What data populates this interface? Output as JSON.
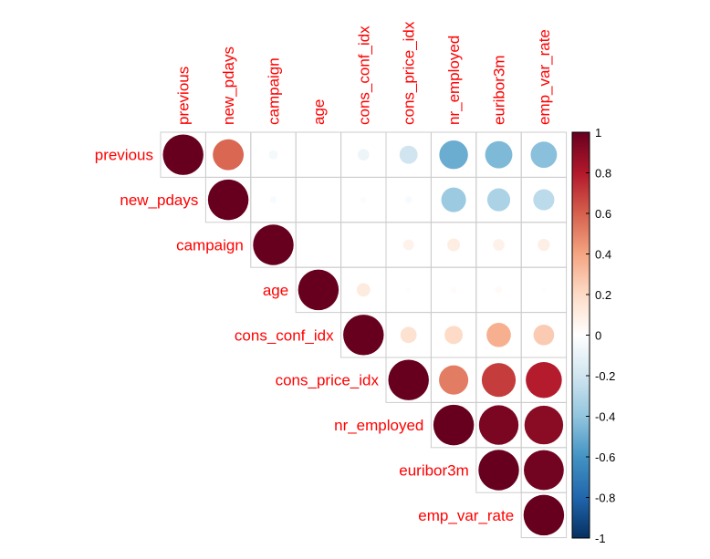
{
  "chart_data": {
    "type": "heatmap",
    "style": "corrplot-upper-circles",
    "variables": [
      "previous",
      "new_pdays",
      "campaign",
      "age",
      "cons_conf_idx",
      "cons_price_idx",
      "nr_employed",
      "euribor3m",
      "emp_var_rate"
    ],
    "matrix": [
      [
        1.0,
        0.58,
        -0.05,
        0.0,
        -0.08,
        -0.2,
        -0.5,
        -0.45,
        -0.42
      ],
      [
        0.58,
        1.0,
        -0.03,
        0.0,
        0.02,
        -0.03,
        -0.37,
        -0.32,
        -0.27
      ],
      [
        -0.05,
        -0.03,
        1.0,
        0.0,
        0.0,
        0.07,
        0.1,
        0.08,
        0.09
      ],
      [
        0.0,
        0.0,
        0.0,
        1.0,
        0.11,
        0.01,
        0.02,
        0.03,
        0.01
      ],
      [
        -0.08,
        0.02,
        0.0,
        0.11,
        1.0,
        0.16,
        0.2,
        0.36,
        0.26
      ],
      [
        -0.2,
        -0.03,
        0.07,
        0.01,
        0.16,
        1.0,
        0.52,
        0.7,
        0.79
      ],
      [
        -0.5,
        -0.37,
        0.1,
        0.02,
        0.2,
        0.52,
        1.0,
        0.95,
        0.91
      ],
      [
        -0.45,
        -0.32,
        0.08,
        0.03,
        0.36,
        0.7,
        0.95,
        1.0,
        0.97
      ],
      [
        -0.42,
        -0.27,
        0.09,
        0.01,
        0.26,
        0.79,
        0.91,
        0.97,
        1.0
      ]
    ],
    "colorbar": {
      "range": [
        -1,
        1
      ],
      "ticks": [
        "1",
        "0.8",
        "0.6",
        "0.4",
        "0.2",
        "0",
        "-0.2",
        "-0.4",
        "-0.6",
        "-0.8",
        "-1"
      ],
      "colors": [
        "#67001F",
        "#B2182B",
        "#D6604D",
        "#F4A582",
        "#FDDBC7",
        "#FFFFFF",
        "#D1E5F0",
        "#92C5DE",
        "#4393C3",
        "#2166AC",
        "#053061"
      ]
    },
    "label_color": "#FF0000"
  }
}
